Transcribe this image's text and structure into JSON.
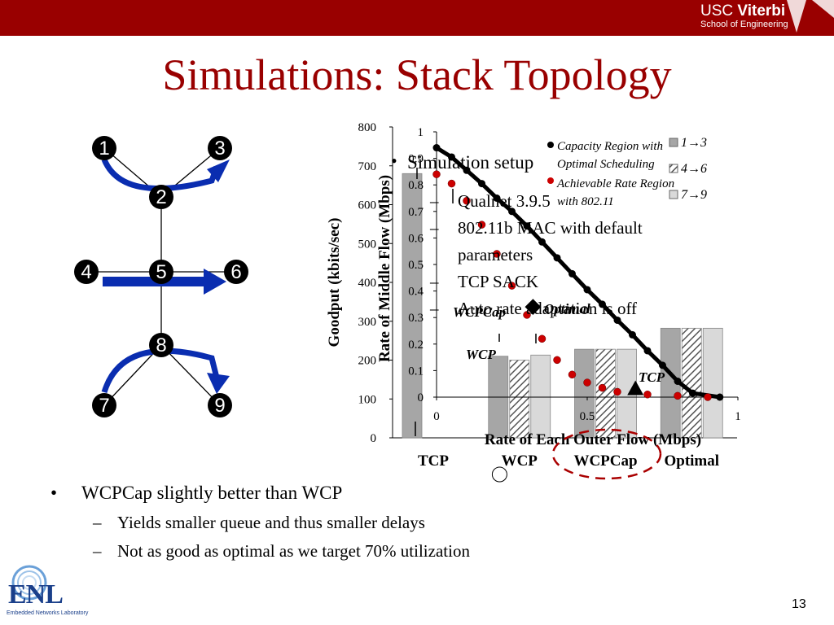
{
  "header": {
    "brand_line1_regular": "USC ",
    "brand_line1_bold": "Viterbi",
    "brand_line2": "School of Engineering",
    "brand_color": "#990000"
  },
  "slide": {
    "title": "Simulations: Stack Topology",
    "page_number": "13",
    "title_color": "#990000"
  },
  "topology": {
    "nodes": [
      "1",
      "2",
      "3",
      "4",
      "5",
      "6",
      "7",
      "8",
      "9"
    ],
    "arrow_color": "#0a2db0"
  },
  "overlay": {
    "heading": "Simulation setup",
    "items": [
      "Qualnet 3.9.5",
      "802.11b MAC with default",
      "parameters",
      "TCP SACK",
      "Auto rate adaptation is off"
    ],
    "labels": {
      "wcpcap": "WCPCap",
      "optimal": "Optimal",
      "wcp": "WCP",
      "tcp": "TCP"
    }
  },
  "bullets": {
    "main": "WCPCap slightly better than WCP",
    "sub": [
      "Yields smaller queue and thus smaller delays",
      "Not as good as optimal as we target 70% utilization"
    ]
  },
  "logo": {
    "text": "ENL",
    "caption": "Embedded Networks Laboratory"
  },
  "chart_data": [
    {
      "type": "bar",
      "ylabel": "Goodput (kbits/sec)",
      "ylim": [
        0,
        800
      ],
      "yticks": [
        "0",
        "100",
        "200",
        "300",
        "400",
        "500",
        "600",
        "700",
        "800"
      ],
      "categories": [
        "TCP",
        "WCP",
        "WCPCap",
        "Optimal"
      ],
      "series": [
        {
          "name": "1→3",
          "values": [
            680,
            210,
            228,
            282
          ]
        },
        {
          "name": "4→6",
          "values": [
            0,
            200,
            228,
            282
          ]
        },
        {
          "name": "7→9",
          "values": [
            0,
            213,
            228,
            282
          ]
        }
      ],
      "colors": [
        "#a6a6a6",
        "hatch",
        "#d9d9d9"
      ],
      "legend_position": "top-right"
    },
    {
      "type": "scatter",
      "xlabel": "Rate of Each Outer Flow (Mbps)",
      "ylabel": "Rate of Middle Flow (Mbps)",
      "xlim": [
        0,
        1
      ],
      "ylim": [
        0,
        1
      ],
      "xticks": [
        "0",
        "0.5",
        "1"
      ],
      "yticks": [
        "0",
        "0.1",
        "0.2",
        "0.3",
        "0.4",
        "0.5",
        "0.6",
        "0.7",
        "0.8",
        "0.9",
        "1"
      ],
      "series": [
        {
          "name": "Capacity Region with Optimal Scheduling",
          "color": "#000000",
          "points": [
            [
              0,
              0.94
            ],
            [
              0.05,
              0.905
            ],
            [
              0.1,
              0.855
            ],
            [
              0.15,
              0.805
            ],
            [
              0.2,
              0.75
            ],
            [
              0.25,
              0.7
            ],
            [
              0.3,
              0.645
            ],
            [
              0.35,
              0.585
            ],
            [
              0.4,
              0.525
            ],
            [
              0.45,
              0.465
            ],
            [
              0.5,
              0.405
            ],
            [
              0.55,
              0.35
            ],
            [
              0.6,
              0.29
            ],
            [
              0.65,
              0.235
            ],
            [
              0.7,
              0.175
            ],
            [
              0.75,
              0.12
            ],
            [
              0.8,
              0.06
            ],
            [
              0.85,
              0.015
            ],
            [
              0.94,
              0
            ]
          ]
        },
        {
          "name": "Achievable Rate Region with 802.11",
          "color": "#cc0000",
          "points": [
            [
              0,
              0.84
            ],
            [
              0.05,
              0.805
            ],
            [
              0.1,
              0.74
            ],
            [
              0.15,
              0.65
            ],
            [
              0.2,
              0.54
            ],
            [
              0.25,
              0.42
            ],
            [
              0.3,
              0.31
            ],
            [
              0.35,
              0.22
            ],
            [
              0.4,
              0.14
            ],
            [
              0.45,
              0.085
            ],
            [
              0.5,
              0.055
            ],
            [
              0.55,
              0.035
            ],
            [
              0.6,
              0.02
            ],
            [
              0.7,
              0.01
            ],
            [
              0.8,
              0.005
            ],
            [
              0.9,
              0
            ]
          ]
        },
        {
          "name": "WCPCap",
          "color": "#000000",
          "points": [
            [
              0.32,
              0.34
            ]
          ]
        },
        {
          "name": "Optimal",
          "color": "#000000",
          "points": [
            [
              0.23,
              0.36
            ]
          ]
        },
        {
          "name": "WCP",
          "color": "#ffffff",
          "points": [
            [
              0.02,
              0.23
            ]
          ]
        },
        {
          "name": "TCP",
          "color": "#000000",
          "points": [
            [
              0.66,
              0.02
            ]
          ]
        }
      ]
    }
  ]
}
